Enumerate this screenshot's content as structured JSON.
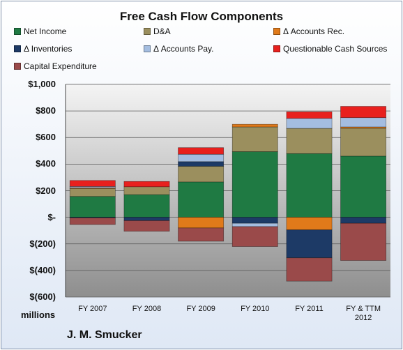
{
  "chart_data": {
    "type": "bar",
    "stacked": true,
    "title": "Free Cash Flow Components",
    "units_label": "millions",
    "company": "J. M. Smucker",
    "categories": [
      "FY 2007",
      "FY 2008",
      "FY 2009",
      "FY 2010",
      "FY 2011",
      "FY & TTM 2012"
    ],
    "ylim": [
      -600,
      1000
    ],
    "yticks": [
      1000,
      800,
      600,
      400,
      200,
      0,
      -200,
      -400,
      -600
    ],
    "ytick_labels": [
      "$1,000",
      "$800",
      "$600",
      "$400",
      "$200",
      "$-",
      "$(200)",
      "$(400)",
      "$(600)"
    ],
    "grid": true,
    "legend_position": "top",
    "series": [
      {
        "name": "Net Income",
        "color": "#1f7a43",
        "values": [
          157,
          170,
          266,
          494,
          479,
          460
        ]
      },
      {
        "name": "D&A",
        "color": "#9b8f5e",
        "values": [
          60,
          60,
          118,
          186,
          190,
          210
        ]
      },
      {
        "name": "Δ Accounts Rec.",
        "color": "#e07a1a",
        "values": [
          5,
          0,
          -80,
          20,
          -95,
          10
        ]
      },
      {
        "name": "Δ Inventories",
        "color": "#1d3a66",
        "values": [
          -5,
          -25,
          35,
          -45,
          -210,
          -45
        ]
      },
      {
        "name": "Δ Accounts Pay.",
        "color": "#a4bde0",
        "values": [
          10,
          0,
          55,
          -25,
          75,
          70
        ]
      },
      {
        "name": "Questionable Cash Sources",
        "color": "#e8201e",
        "values": [
          45,
          40,
          50,
          0,
          50,
          85
        ]
      },
      {
        "name": "Capital Expenditure",
        "color": "#9a4a4a",
        "values": [
          -50,
          -80,
          -100,
          -150,
          -175,
          -280
        ]
      }
    ]
  }
}
